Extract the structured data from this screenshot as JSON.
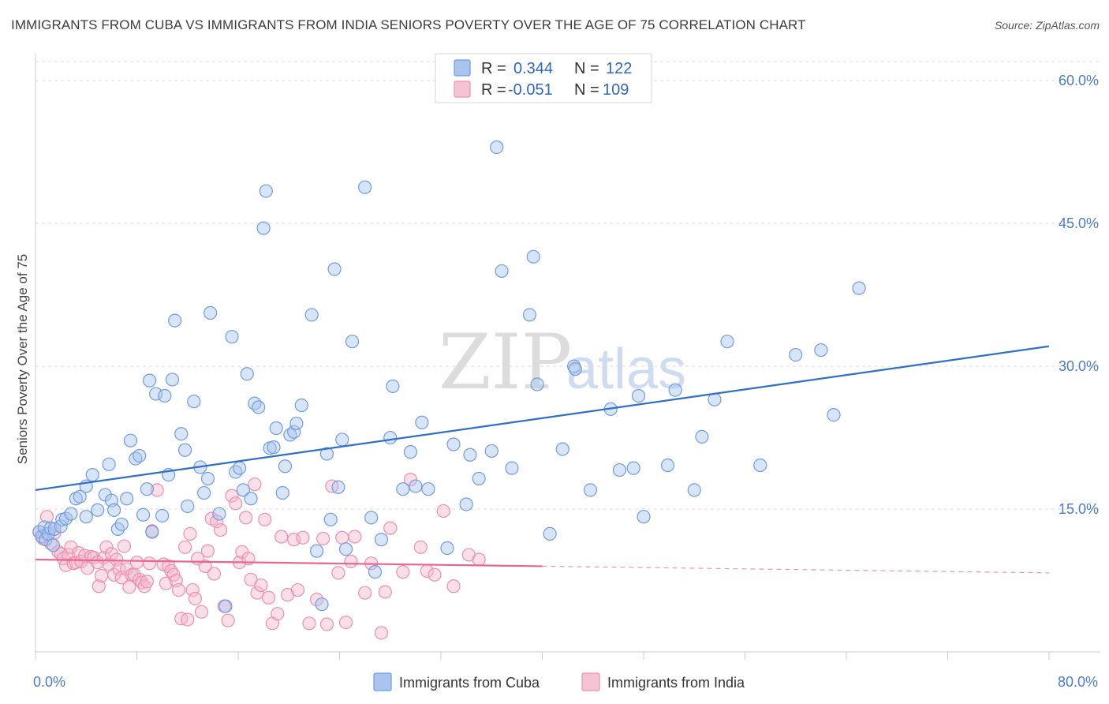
{
  "header": {
    "title": "IMMIGRANTS FROM CUBA VS IMMIGRANTS FROM INDIA SENIORS POVERTY OVER THE AGE OF 75 CORRELATION CHART",
    "source": "Source: ZipAtlas.com"
  },
  "watermark": {
    "zip": "ZIP",
    "atlas": "atlas"
  },
  "legend": {
    "cuba": {
      "r_label": "R =",
      "r_value": "0.344",
      "n_label": "N =",
      "n_value": "122"
    },
    "india": {
      "r_label": "R =",
      "r_value": "-0.051",
      "n_label": "N =",
      "n_value": "109"
    }
  },
  "colors": {
    "cuba_fill": "#a9c4ee",
    "cuba_stroke": "#6f9de0",
    "cuba_line": "#2f6fcc",
    "india_fill": "#f5b8cc",
    "india_stroke": "#ee8fb0",
    "india_line": "#e8668f",
    "grid": "#dedede",
    "tick_text": "#4a7cc9"
  },
  "chart_data": {
    "type": "scatter",
    "title": "IMMIGRANTS FROM CUBA VS IMMIGRANTS FROM INDIA SENIORS POVERTY OVER THE AGE OF 75 CORRELATION CHART",
    "xlabel": "",
    "ylabel": "Seniors Poverty Over the Age of 75",
    "xlim": [
      0,
      80
    ],
    "ylim": [
      0,
      62
    ],
    "x_tick_labels": [
      "0.0%",
      "80.0%"
    ],
    "y_ticks": [
      15,
      30,
      45,
      60
    ],
    "y_tick_labels": [
      "15.0%",
      "30.0%",
      "45.0%",
      "60.0%"
    ],
    "legend_position": "top-center",
    "series": [
      {
        "name": "Immigrants from Cuba",
        "r": 0.344,
        "n": 122,
        "trend": {
          "x": [
            0,
            80
          ],
          "y": [
            17.0,
            32.1
          ]
        },
        "points": [
          [
            0.3,
            12.6
          ],
          [
            0.5,
            12.1
          ],
          [
            0.7,
            13.1
          ],
          [
            0.8,
            11.8
          ],
          [
            1.0,
            12.4
          ],
          [
            1.2,
            13.0
          ],
          [
            1.4,
            11.2
          ],
          [
            1.5,
            12.9
          ],
          [
            2.0,
            13.2
          ],
          [
            2.1,
            13.9
          ],
          [
            2.4,
            14.0
          ],
          [
            2.8,
            14.5
          ],
          [
            3.2,
            16.1
          ],
          [
            3.5,
            16.3
          ],
          [
            4.0,
            17.4
          ],
          [
            4.0,
            14.2
          ],
          [
            4.5,
            18.6
          ],
          [
            4.9,
            14.9
          ],
          [
            5.5,
            16.5
          ],
          [
            5.8,
            19.7
          ],
          [
            6.0,
            15.9
          ],
          [
            6.2,
            14.9
          ],
          [
            6.5,
            12.9
          ],
          [
            6.8,
            13.4
          ],
          [
            7.2,
            16.1
          ],
          [
            7.5,
            22.2
          ],
          [
            7.9,
            20.3
          ],
          [
            8.2,
            20.6
          ],
          [
            8.5,
            14.4
          ],
          [
            8.8,
            17.1
          ],
          [
            9.0,
            28.5
          ],
          [
            9.2,
            12.6
          ],
          [
            9.5,
            27.1
          ],
          [
            10.0,
            14.3
          ],
          [
            10.2,
            26.9
          ],
          [
            10.5,
            18.6
          ],
          [
            10.8,
            28.6
          ],
          [
            11.0,
            34.8
          ],
          [
            11.5,
            22.9
          ],
          [
            11.8,
            21.2
          ],
          [
            12.0,
            15.3
          ],
          [
            12.5,
            26.3
          ],
          [
            13.0,
            19.4
          ],
          [
            13.3,
            16.7
          ],
          [
            13.6,
            18.2
          ],
          [
            13.8,
            35.6
          ],
          [
            14.5,
            14.5
          ],
          [
            15.0,
            4.8
          ],
          [
            15.5,
            33.1
          ],
          [
            15.8,
            18.9
          ],
          [
            16.1,
            19.3
          ],
          [
            16.4,
            17.0
          ],
          [
            16.7,
            29.2
          ],
          [
            17.0,
            16.1
          ],
          [
            17.3,
            26.1
          ],
          [
            17.6,
            25.7
          ],
          [
            18.0,
            44.5
          ],
          [
            18.2,
            48.4
          ],
          [
            18.5,
            21.4
          ],
          [
            18.8,
            21.5
          ],
          [
            19.0,
            23.5
          ],
          [
            19.5,
            16.7
          ],
          [
            19.7,
            19.5
          ],
          [
            20.1,
            22.8
          ],
          [
            20.4,
            23.1
          ],
          [
            20.6,
            24.0
          ],
          [
            21.0,
            25.9
          ],
          [
            21.8,
            35.4
          ],
          [
            22.2,
            10.6
          ],
          [
            22.6,
            5.0
          ],
          [
            23.0,
            20.8
          ],
          [
            23.3,
            13.9
          ],
          [
            23.6,
            40.2
          ],
          [
            23.9,
            17.3
          ],
          [
            24.2,
            22.3
          ],
          [
            24.5,
            10.8
          ],
          [
            25.0,
            32.6
          ],
          [
            26.0,
            48.8
          ],
          [
            26.5,
            14.1
          ],
          [
            26.8,
            8.4
          ],
          [
            27.3,
            11.8
          ],
          [
            28.0,
            22.5
          ],
          [
            28.2,
            27.9
          ],
          [
            29.0,
            17.1
          ],
          [
            29.6,
            21.0
          ],
          [
            30.0,
            17.4
          ],
          [
            30.5,
            24.1
          ],
          [
            31.0,
            17.1
          ],
          [
            32.5,
            10.9
          ],
          [
            33.0,
            21.8
          ],
          [
            34.0,
            15.5
          ],
          [
            34.3,
            20.7
          ],
          [
            35.0,
            18.2
          ],
          [
            36.0,
            21.1
          ],
          [
            36.4,
            53.0
          ],
          [
            36.8,
            40.0
          ],
          [
            37.6,
            19.3
          ],
          [
            39.0,
            35.4
          ],
          [
            39.3,
            41.5
          ],
          [
            39.6,
            28.1
          ],
          [
            40.6,
            12.4
          ],
          [
            41.6,
            21.3
          ],
          [
            42.5,
            30.0
          ],
          [
            42.6,
            29.7
          ],
          [
            43.8,
            17.0
          ],
          [
            45.4,
            25.5
          ],
          [
            46.1,
            19.1
          ],
          [
            47.2,
            19.3
          ],
          [
            47.6,
            26.9
          ],
          [
            48.0,
            14.2
          ],
          [
            49.9,
            19.6
          ],
          [
            50.5,
            27.5
          ],
          [
            52.0,
            17.0
          ],
          [
            52.6,
            22.6
          ],
          [
            53.6,
            26.5
          ],
          [
            54.6,
            32.6
          ],
          [
            57.2,
            19.6
          ],
          [
            60.0,
            31.2
          ],
          [
            62.0,
            31.7
          ],
          [
            63.0,
            24.9
          ],
          [
            65.0,
            38.2
          ]
        ]
      },
      {
        "name": "Immigrants from India",
        "r": -0.051,
        "n": 109,
        "trend": {
          "x": [
            0,
            40
          ],
          "y": [
            9.7,
            9.0
          ]
        },
        "trend_dashed": {
          "x": [
            40,
            80
          ],
          "y": [
            9.0,
            8.3
          ]
        },
        "points": [
          [
            0.3,
            12.6
          ],
          [
            0.6,
            11.9
          ],
          [
            0.9,
            14.2
          ],
          [
            1.2,
            11.4
          ],
          [
            1.5,
            12.5
          ],
          [
            1.8,
            10.5
          ],
          [
            2.0,
            10.3
          ],
          [
            2.2,
            9.8
          ],
          [
            2.4,
            9.1
          ],
          [
            2.6,
            10.2
          ],
          [
            2.8,
            11.0
          ],
          [
            3.0,
            9.3
          ],
          [
            3.2,
            9.4
          ],
          [
            3.4,
            10.4
          ],
          [
            3.6,
            9.5
          ],
          [
            3.9,
            10.1
          ],
          [
            4.1,
            8.8
          ],
          [
            4.4,
            10.0
          ],
          [
            4.6,
            9.9
          ],
          [
            4.9,
            9.4
          ],
          [
            5.0,
            6.9
          ],
          [
            5.2,
            8.0
          ],
          [
            5.4,
            9.9
          ],
          [
            5.6,
            11.0
          ],
          [
            5.8,
            9.2
          ],
          [
            6.0,
            10.3
          ],
          [
            6.2,
            8.1
          ],
          [
            6.4,
            9.7
          ],
          [
            6.6,
            8.7
          ],
          [
            6.8,
            7.8
          ],
          [
            7.0,
            11.1
          ],
          [
            7.2,
            8.7
          ],
          [
            7.4,
            6.8
          ],
          [
            7.6,
            8.1
          ],
          [
            7.8,
            8.1
          ],
          [
            8.0,
            9.4
          ],
          [
            8.2,
            7.6
          ],
          [
            8.4,
            7.3
          ],
          [
            8.6,
            6.9
          ],
          [
            8.8,
            7.4
          ],
          [
            9.0,
            9.3
          ],
          [
            9.2,
            12.7
          ],
          [
            9.6,
            17.0
          ],
          [
            10.1,
            9.2
          ],
          [
            10.3,
            7.2
          ],
          [
            10.5,
            9.0
          ],
          [
            10.7,
            8.5
          ],
          [
            10.9,
            8.1
          ],
          [
            11.1,
            7.5
          ],
          [
            11.3,
            6.5
          ],
          [
            11.5,
            3.5
          ],
          [
            11.8,
            11.0
          ],
          [
            12.0,
            3.4
          ],
          [
            12.2,
            12.4
          ],
          [
            12.4,
            6.5
          ],
          [
            12.6,
            5.6
          ],
          [
            12.8,
            9.8
          ],
          [
            13.1,
            4.2
          ],
          [
            13.4,
            9.0
          ],
          [
            13.6,
            10.6
          ],
          [
            13.9,
            14.0
          ],
          [
            14.1,
            8.2
          ],
          [
            14.3,
            13.7
          ],
          [
            14.6,
            12.8
          ],
          [
            14.9,
            4.8
          ],
          [
            15.2,
            3.3
          ],
          [
            15.5,
            16.4
          ],
          [
            15.8,
            15.6
          ],
          [
            16.1,
            9.4
          ],
          [
            16.3,
            10.5
          ],
          [
            16.6,
            14.1
          ],
          [
            16.8,
            9.8
          ],
          [
            17.0,
            7.6
          ],
          [
            17.3,
            17.6
          ],
          [
            17.5,
            6.2
          ],
          [
            17.8,
            7.0
          ],
          [
            18.1,
            13.9
          ],
          [
            18.4,
            5.7
          ],
          [
            18.7,
            3.0
          ],
          [
            19.1,
            4.0
          ],
          [
            19.4,
            12.1
          ],
          [
            19.9,
            6.0
          ],
          [
            20.4,
            11.8
          ],
          [
            20.7,
            6.5
          ],
          [
            21.1,
            12.0
          ],
          [
            21.6,
            3.0
          ],
          [
            22.2,
            5.5
          ],
          [
            22.7,
            11.9
          ],
          [
            23.0,
            2.9
          ],
          [
            23.4,
            17.4
          ],
          [
            23.9,
            8.3
          ],
          [
            24.2,
            12.0
          ],
          [
            24.5,
            3.1
          ],
          [
            24.9,
            9.5
          ],
          [
            25.2,
            12.1
          ],
          [
            26.0,
            6.2
          ],
          [
            26.5,
            9.3
          ],
          [
            27.3,
            2.0
          ],
          [
            27.6,
            6.3
          ],
          [
            28.0,
            13.0
          ],
          [
            29.0,
            8.4
          ],
          [
            29.6,
            18.1
          ],
          [
            30.4,
            11.0
          ],
          [
            30.9,
            8.5
          ],
          [
            31.5,
            8.1
          ],
          [
            32.2,
            14.8
          ],
          [
            33.0,
            6.9
          ],
          [
            34.2,
            10.2
          ],
          [
            35.0,
            9.7
          ]
        ]
      }
    ]
  },
  "bottom_legend": {
    "cuba": "Immigrants from Cuba",
    "india": "Immigrants from India"
  }
}
